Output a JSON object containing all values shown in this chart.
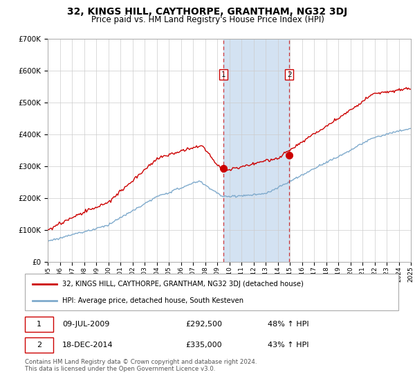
{
  "title": "32, KINGS HILL, CAYTHORPE, GRANTHAM, NG32 3DJ",
  "subtitle": "Price paid vs. HM Land Registry's House Price Index (HPI)",
  "title_fontsize": 10,
  "subtitle_fontsize": 8.5,
  "ylim": [
    0,
    700000
  ],
  "yticks": [
    0,
    100000,
    200000,
    300000,
    400000,
    500000,
    600000,
    700000
  ],
  "ytick_labels": [
    "£0",
    "£100K",
    "£200K",
    "£300K",
    "£400K",
    "£500K",
    "£600K",
    "£700K"
  ],
  "x_start_year": 1995,
  "x_end_year": 2025,
  "transaction1_year": 2009.52,
  "transaction2_year": 2014.96,
  "transaction1_price": 292500,
  "transaction2_price": 335000,
  "transaction1_label": "1",
  "transaction2_label": "2",
  "transaction1_date": "09-JUL-2009",
  "transaction2_date": "18-DEC-2014",
  "transaction1_hpi_pct": "48% ↑ HPI",
  "transaction2_hpi_pct": "43% ↑ HPI",
  "red_line_color": "#cc0000",
  "blue_line_color": "#7faacc",
  "shaded_region_color": "#ccddf0",
  "vline_color": "#cc0000",
  "legend1": "32, KINGS HILL, CAYTHORPE, GRANTHAM, NG32 3DJ (detached house)",
  "legend2": "HPI: Average price, detached house, South Kesteven",
  "footer": "Contains HM Land Registry data © Crown copyright and database right 2024.\nThis data is licensed under the Open Government Licence v3.0.",
  "background_color": "#ffffff",
  "grid_color": "#cccccc",
  "hatch_color": "#cccccc"
}
